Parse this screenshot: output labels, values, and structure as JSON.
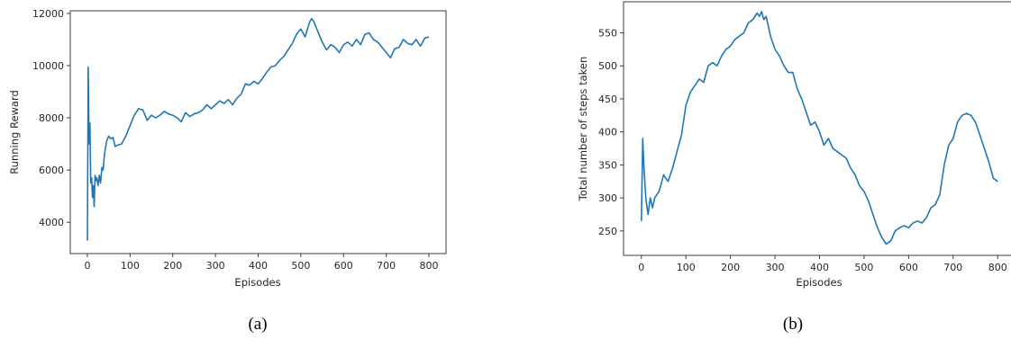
{
  "colors": {
    "series": "#1f77b4",
    "axis": "#262626"
  },
  "chart_data": [
    {
      "type": "line",
      "caption": "(a)",
      "xlabel": "Episodes",
      "ylabel": "Running Reward",
      "xlim": [
        -40,
        840
      ],
      "ylim": [
        2800,
        12100
      ],
      "xticks": [
        0,
        100,
        200,
        300,
        400,
        500,
        600,
        700,
        800
      ],
      "yticks": [
        4000,
        6000,
        8000,
        10000,
        12000
      ],
      "grid": false,
      "series": [
        {
          "x": [
            0,
            2,
            4,
            6,
            8,
            10,
            12,
            14,
            16,
            18,
            20,
            22,
            25,
            28,
            31,
            34,
            37,
            40,
            45,
            50,
            55,
            60,
            65,
            70,
            80,
            90,
            100,
            110,
            120,
            130,
            140,
            150,
            160,
            170,
            180,
            190,
            200,
            210,
            220,
            230,
            240,
            250,
            260,
            270,
            280,
            290,
            300,
            310,
            320,
            330,
            340,
            350,
            360,
            370,
            380,
            390,
            400,
            410,
            420,
            430,
            440,
            450,
            460,
            470,
            480,
            490,
            500,
            510,
            520,
            525,
            530,
            540,
            550,
            560,
            570,
            580,
            590,
            600,
            610,
            620,
            630,
            640,
            650,
            660,
            670,
            680,
            690,
            700,
            710,
            720,
            730,
            740,
            750,
            760,
            770,
            780,
            790,
            800
          ],
          "values": [
            3300,
            9950,
            7000,
            7800,
            5500,
            5700,
            4950,
            5400,
            4600,
            5800,
            5600,
            5700,
            5400,
            5800,
            5500,
            6100,
            6000,
            6600,
            7100,
            7300,
            7200,
            7250,
            6900,
            6950,
            7000,
            7300,
            7700,
            8100,
            8350,
            8300,
            7900,
            8100,
            8000,
            8100,
            8250,
            8150,
            8100,
            8000,
            7850,
            8200,
            8050,
            8150,
            8200,
            8300,
            8500,
            8350,
            8500,
            8650,
            8550,
            8700,
            8500,
            8750,
            8900,
            9300,
            9250,
            9400,
            9300,
            9500,
            9750,
            9950,
            10000,
            10200,
            10350,
            10600,
            10850,
            11200,
            11400,
            11100,
            11650,
            11800,
            11700,
            11300,
            10900,
            10600,
            10800,
            10700,
            10500,
            10800,
            10900,
            10750,
            11000,
            10800,
            11200,
            11250,
            11000,
            10900,
            10700,
            10500,
            10300,
            10650,
            10700,
            11000,
            10850,
            10800,
            11000,
            10750,
            11050,
            11100
          ]
        }
      ]
    },
    {
      "type": "line",
      "caption": "(b)",
      "xlabel": "Episodes",
      "ylabel": "Total number of steps taken",
      "xlim": [
        -40,
        840
      ],
      "ylim": [
        213,
        597
      ],
      "xticks": [
        0,
        100,
        200,
        300,
        400,
        500,
        600,
        700,
        800
      ],
      "yticks": [
        250,
        300,
        350,
        400,
        450,
        500,
        550
      ],
      "grid": false,
      "series": [
        {
          "x": [
            0,
            3,
            6,
            10,
            15,
            20,
            25,
            30,
            40,
            50,
            60,
            70,
            80,
            90,
            100,
            110,
            120,
            130,
            140,
            150,
            160,
            170,
            180,
            190,
            200,
            210,
            220,
            230,
            240,
            250,
            260,
            265,
            270,
            275,
            280,
            285,
            290,
            300,
            310,
            320,
            330,
            340,
            350,
            360,
            370,
            380,
            390,
            400,
            410,
            420,
            430,
            440,
            450,
            460,
            470,
            480,
            490,
            500,
            510,
            520,
            530,
            540,
            550,
            560,
            570,
            580,
            590,
            600,
            610,
            620,
            630,
            640,
            650,
            660,
            670,
            680,
            690,
            700,
            710,
            720,
            730,
            740,
            750,
            760,
            770,
            780,
            790,
            800
          ],
          "values": [
            265,
            390,
            345,
            300,
            275,
            300,
            285,
            300,
            310,
            335,
            325,
            345,
            370,
            395,
            440,
            460,
            470,
            480,
            475,
            500,
            505,
            500,
            515,
            525,
            530,
            540,
            545,
            550,
            565,
            570,
            580,
            575,
            582,
            570,
            575,
            560,
            545,
            525,
            515,
            500,
            490,
            490,
            465,
            450,
            430,
            410,
            415,
            400,
            380,
            390,
            375,
            370,
            365,
            360,
            345,
            335,
            318,
            310,
            295,
            275,
            255,
            240,
            230,
            235,
            250,
            255,
            258,
            255,
            262,
            265,
            262,
            270,
            285,
            290,
            305,
            350,
            380,
            390,
            415,
            425,
            428,
            425,
            415,
            395,
            375,
            355,
            330,
            325
          ]
        }
      ]
    }
  ]
}
